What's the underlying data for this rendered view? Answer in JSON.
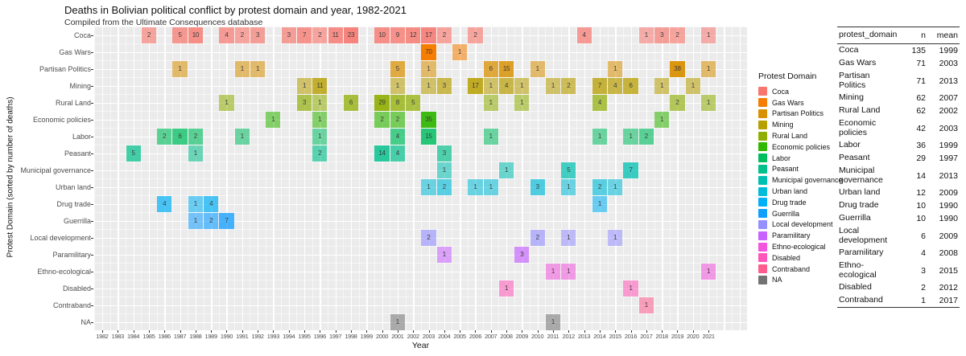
{
  "title": "Deaths in Bolivian political conflict by protest domain and year, 1982-2021",
  "subtitle": "Compiled from the Ultimate Consequences database",
  "chart_data": {
    "type": "heatmap",
    "xlabel": "Year",
    "ylabel": "Protest Domain (sorted by number of deaths)",
    "legend_title": "Protest Domain",
    "x_range": [
      1982,
      2021
    ],
    "years": [
      1982,
      1983,
      1984,
      1985,
      1986,
      1987,
      1988,
      1989,
      1990,
      1991,
      1992,
      1993,
      1994,
      1995,
      1996,
      1997,
      1998,
      1999,
      2000,
      2001,
      2002,
      2003,
      2004,
      2005,
      2006,
      2007,
      2008,
      2009,
      2010,
      2011,
      2012,
      2013,
      2014,
      2015,
      2016,
      2017,
      2018,
      2019,
      2020,
      2021
    ],
    "rows": [
      {
        "name": "Coca",
        "color": "#F8766D",
        "cells": {
          "1985": 2,
          "1987": 5,
          "1988": 10,
          "1990": 4,
          "1991": 2,
          "1992": 3,
          "1994": 3,
          "1995": 7,
          "1996": 2,
          "1997": 11,
          "1998": 23,
          "2000": 10,
          "2001": 9,
          "2002": 12,
          "2003": 17,
          "2004": 2,
          "2006": 2,
          "2013": 4,
          "2017": 1,
          "2018": 3,
          "2019": 2,
          "2021": 1
        }
      },
      {
        "name": "Gas Wars",
        "color": "#F57D00",
        "cells": {
          "2003": 70,
          "2005": 1
        }
      },
      {
        "name": "Partisan Politics",
        "color": "#D99000",
        "cells": {
          "1987": 1,
          "1991": 1,
          "1992": 1,
          "2001": 5,
          "2003": 1,
          "2007": 6,
          "2008": 15,
          "2010": 1,
          "2015": 1,
          "2019": 38,
          "2021": 1
        }
      },
      {
        "name": "Mining",
        "color": "#B79F00",
        "cells": {
          "1995": 1,
          "1996": 11,
          "2001": 1,
          "2003": 1,
          "2004": 3,
          "2006": 17,
          "2007": 1,
          "2008": 4,
          "2009": 1,
          "2011": 1,
          "2012": 2,
          "2014": 7,
          "2015": 4,
          "2016": 6,
          "2018": 1,
          "2020": 1
        }
      },
      {
        "name": "Rural Land",
        "color": "#8FAE00",
        "cells": {
          "1990": 1,
          "1995": 3,
          "1996": 1,
          "1998": 6,
          "2000": 29,
          "2001": 8,
          "2002": 5,
          "2007": 1,
          "2009": 1,
          "2014": 4,
          "2019": 2,
          "2021": 1
        }
      },
      {
        "name": "Economic policies",
        "color": "#30B700",
        "cells": {
          "1993": 1,
          "1996": 1,
          "2000": 2,
          "2001": 2,
          "2003": 35,
          "2018": 1
        }
      },
      {
        "name": "Labor",
        "color": "#00BE5F",
        "cells": {
          "1986": 2,
          "1987": 6,
          "1988": 2,
          "1991": 1,
          "1996": 1,
          "2001": 4,
          "2003": 15,
          "2007": 1,
          "2014": 1,
          "2016": 1,
          "2017": 2
        }
      },
      {
        "name": "Peasant",
        "color": "#00C08B",
        "cells": {
          "1984": 5,
          "1988": 1,
          "1996": 2,
          "2000": 14,
          "2001": 4,
          "2004": 3
        }
      },
      {
        "name": "Municipal governance",
        "color": "#00C0B2",
        "cells": {
          "2004": 1,
          "2008": 1,
          "2012": 5,
          "2016": 7
        }
      },
      {
        "name": "Urban land",
        "color": "#00BCD9",
        "cells": {
          "2003": 1,
          "2004": 2,
          "2006": 1,
          "2007": 1,
          "2010": 3,
          "2012": 1,
          "2014": 2,
          "2015": 1
        }
      },
      {
        "name": "Drug trade",
        "color": "#00B0F6",
        "cells": {
          "1986": 4,
          "1988": 1,
          "1989": 4,
          "2014": 1
        }
      },
      {
        "name": "Guerrilla",
        "color": "#119FFF",
        "cells": {
          "1988": 1,
          "1989": 2,
          "1990": 7
        }
      },
      {
        "name": "Local development",
        "color": "#9590FF",
        "cells": {
          "2003": 2,
          "2010": 2,
          "2012": 1,
          "2015": 1
        }
      },
      {
        "name": "Paramilitary",
        "color": "#C863FF",
        "cells": {
          "2004": 1,
          "2009": 3
        }
      },
      {
        "name": "Ethno-ecological",
        "color": "#F355DF",
        "cells": {
          "2011": 1,
          "2012": 1,
          "2021": 1
        }
      },
      {
        "name": "Disabled",
        "color": "#FF57B8",
        "cells": {
          "2008": 1,
          "2016": 1
        }
      },
      {
        "name": "Contraband",
        "color": "#FF5C8F",
        "cells": {
          "2017": 1
        }
      },
      {
        "name": "NA",
        "color": "#737373",
        "cells": {
          "2001": 1,
          "2011": 1
        }
      }
    ]
  },
  "table": {
    "headers": [
      "protest_domain",
      "n",
      "mean"
    ],
    "rows": [
      {
        "domain": "Coca",
        "n": "135",
        "mean": "1999"
      },
      {
        "domain": "Gas Wars",
        "n": "71",
        "mean": "2003"
      },
      {
        "domain": "Partisan\nPolitics",
        "n": "71",
        "mean": "2013"
      },
      {
        "domain": "Mining",
        "n": "62",
        "mean": "2007"
      },
      {
        "domain": "Rural Land",
        "n": "62",
        "mean": "2002"
      },
      {
        "domain": "Economic\npolicies",
        "n": "42",
        "mean": "2003"
      },
      {
        "domain": "Labor",
        "n": "36",
        "mean": "1999"
      },
      {
        "domain": "Peasant",
        "n": "29",
        "mean": "1997"
      },
      {
        "domain": "Municipal\ngovernance",
        "n": "14",
        "mean": "2013"
      },
      {
        "domain": "Urban land",
        "n": "12",
        "mean": "2009"
      },
      {
        "domain": "Drug trade",
        "n": "10",
        "mean": "1990"
      },
      {
        "domain": "Guerrilla",
        "n": "10",
        "mean": "1990"
      },
      {
        "domain": "Local\ndevelopment",
        "n": "6",
        "mean": "2009"
      },
      {
        "domain": "Paramilitary",
        "n": "4",
        "mean": "2008"
      },
      {
        "domain": "Ethno-\necological",
        "n": "3",
        "mean": "2015"
      },
      {
        "domain": "Disabled",
        "n": "2",
        "mean": "2012"
      },
      {
        "domain": "Contraband",
        "n": "1",
        "mean": "2017"
      }
    ]
  }
}
